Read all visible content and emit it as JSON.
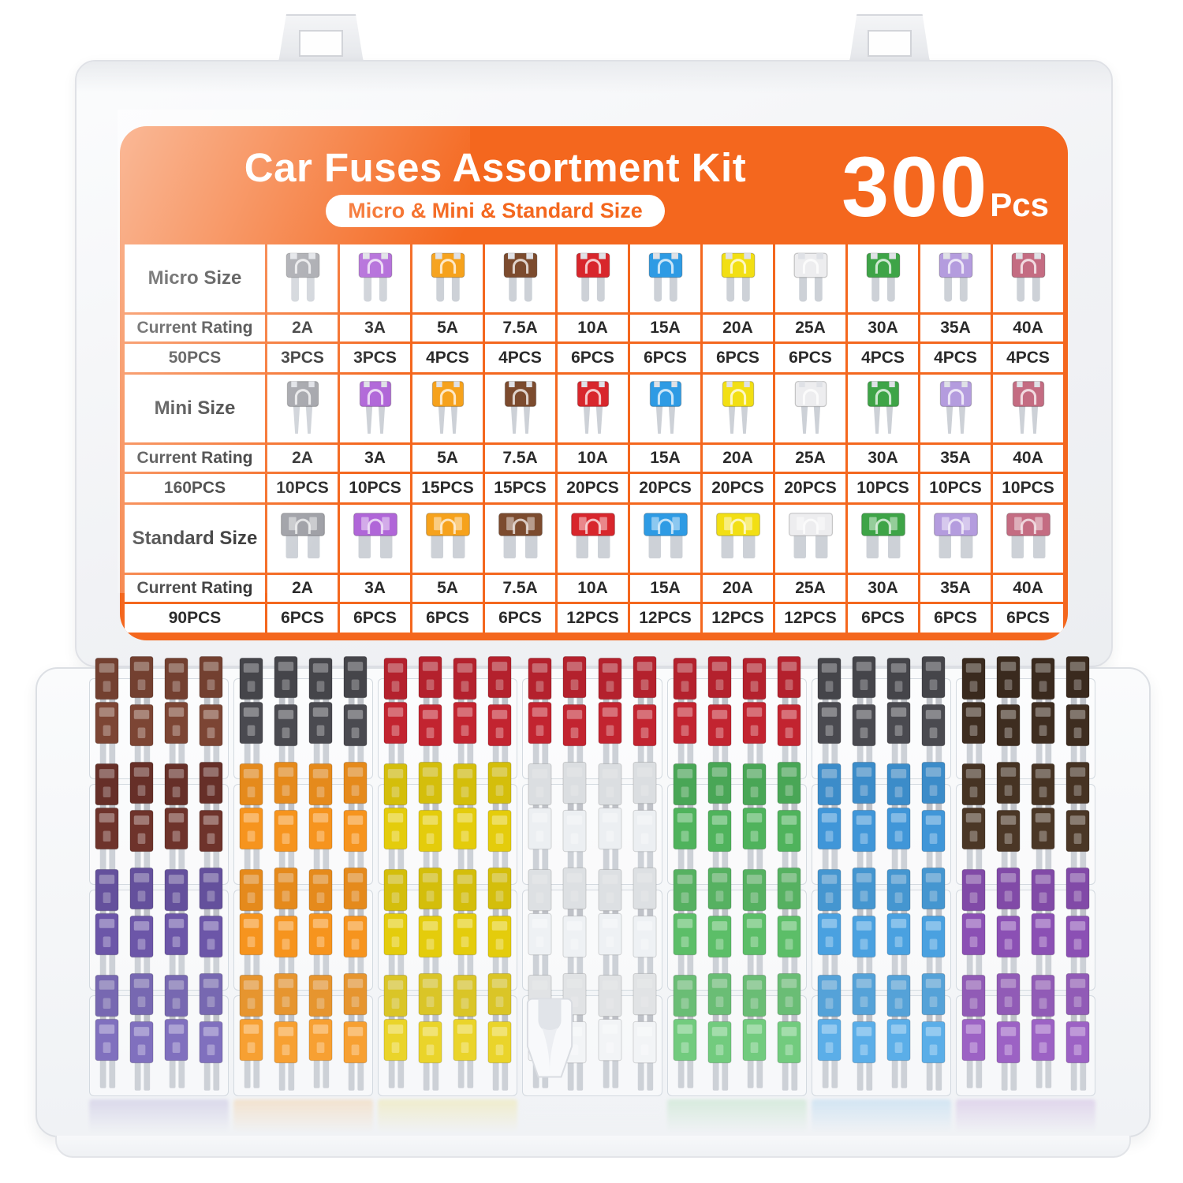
{
  "product_label": {
    "title": "Car Fuses Assortment Kit",
    "subtitle": "Micro & Mini & Standard Size",
    "count": "300",
    "count_unit": "Pcs"
  },
  "table": {
    "rating_row_label": "Current Rating",
    "ratings": [
      "2A",
      "3A",
      "5A",
      "7.5A",
      "10A",
      "15A",
      "20A",
      "25A",
      "30A",
      "35A",
      "40A"
    ],
    "fuse_colors": [
      "#9FA0A6",
      "#B066D8",
      "#F6A21C",
      "#7C4B2E",
      "#D8262C",
      "#2E9BE4",
      "#F2DF14",
      "#EDEDEF",
      "#3EA447",
      "#B49CDE",
      "#C46C82"
    ],
    "sections": [
      {
        "size_label": "Micro Size",
        "fuse_type": "micro",
        "total": "50PCS",
        "pieces": [
          "3PCS",
          "3PCS",
          "4PCS",
          "4PCS",
          "6PCS",
          "6PCS",
          "6PCS",
          "6PCS",
          "4PCS",
          "4PCS",
          "4PCS"
        ]
      },
      {
        "size_label": "Mini Size",
        "fuse_type": "mini",
        "total": "160PCS",
        "pieces": [
          "10PCS",
          "10PCS",
          "15PCS",
          "15PCS",
          "20PCS",
          "20PCS",
          "20PCS",
          "20PCS",
          "10PCS",
          "10PCS",
          "10PCS"
        ]
      },
      {
        "size_label": "Standard Size",
        "fuse_type": "standard",
        "total": "90PCS",
        "pieces": [
          "6PCS",
          "6PCS",
          "6PCS",
          "6PCS",
          "12PCS",
          "12PCS",
          "12PCS",
          "12PCS",
          "6PCS",
          "6PCS",
          "6PCS"
        ]
      }
    ]
  },
  "colors": {
    "accent_orange": "#F4671E",
    "metal_gray": "#CDD1D7",
    "table_text": "#2A2A2A"
  },
  "case": {
    "compartment_colors": [
      [
        "#7C4534",
        "#4A4A50",
        "#C22430",
        "#C22430",
        "#C22430",
        "#4A4A50",
        "#3E2D20"
      ],
      [
        "#6E332B",
        "#F6941E",
        "#E4CC0C",
        "#ECEFF2",
        "#4FB35C",
        "#4096D8",
        "#4B3726"
      ],
      [
        "#6C56A8",
        "#F6941E",
        "#E4CC0C",
        "#EEF1F4",
        "#5CBE68",
        "#4AA1E0",
        "#8B50B4"
      ],
      [
        "#8070BE",
        "#F7A032",
        "#EAD42A",
        "#F2F4F6",
        "#72CB7E",
        "#5BAEE8",
        "#9C62C4"
      ]
    ],
    "fuse_puller": {
      "name": "fuse-puller",
      "row": 3,
      "col": 3,
      "color": "#F8F9FB"
    }
  }
}
